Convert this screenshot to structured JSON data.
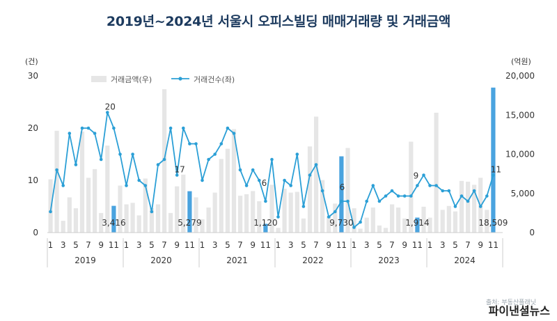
{
  "chart_data": {
    "type": "bar",
    "title": "2019년~2024년 서울시 오피스빌딩 매매거래량 및 거래금액",
    "left_unit": "(건)",
    "right_unit": "(억원)",
    "left_ylim": [
      0,
      30
    ],
    "right_ylim": [
      0,
      20000
    ],
    "left_ticks": [
      "0",
      "10",
      "20",
      "30"
    ],
    "right_ticks": [
      "0",
      "5,000",
      "10,000",
      "15,000",
      "20,000"
    ],
    "years": [
      "2019",
      "2020",
      "2021",
      "2022",
      "2023",
      "2024"
    ],
    "month_labels": [
      "1",
      "",
      "3",
      "",
      "5",
      "",
      "7",
      "",
      "9",
      "",
      "11",
      ""
    ],
    "legend": {
      "bar": "거래금액(우)",
      "line": "거래건수(좌)"
    },
    "colors": {
      "bar": "#e6e6e6",
      "bar_highlight": "#4aa3df",
      "line": "#2b9fd6",
      "axis": "#cccccc",
      "title": "#1c3a5e"
    },
    "series": [
      {
        "name": "거래금액(우)",
        "values": [
          6800,
          13000,
          1500,
          4500,
          3100,
          12900,
          7000,
          8100,
          2500,
          11100,
          3416,
          6000,
          3600,
          3800,
          2200,
          6900,
          3100,
          3600,
          18300,
          2500,
          5900,
          7400,
          5279,
          4500,
          1700,
          3200,
          5100,
          9400,
          10700,
          13200,
          4700,
          4900,
          5300,
          4000,
          1120,
          6100,
          600,
          5600,
          5100,
          5200,
          1800,
          11000,
          14800,
          6700,
          2100,
          3700,
          9730,
          10800,
          3100,
          500,
          1900,
          3200,
          900,
          600,
          3600,
          3200,
          1800,
          11600,
          1914,
          3300,
          1900,
          15300,
          2900,
          3400,
          2700,
          6600,
          6500,
          6100,
          7000,
          2900,
          18509,
          0
        ]
      },
      {
        "name": "거래건수(좌)",
        "values": [
          4,
          12,
          9,
          19,
          13,
          20,
          20,
          19,
          14,
          23,
          20,
          15,
          9,
          15,
          10,
          9,
          4,
          13,
          14,
          20,
          11,
          20,
          17,
          17,
          10,
          14,
          15,
          17,
          20,
          19,
          12,
          9,
          12,
          10,
          6,
          14,
          3,
          10,
          9,
          15,
          5,
          11,
          13,
          8,
          3,
          4,
          6,
          6,
          1,
          2,
          6,
          9,
          6,
          7,
          8,
          7,
          7,
          7,
          9,
          11,
          9,
          9,
          8,
          8,
          5,
          7,
          6,
          8,
          5,
          7,
          11,
          0
        ]
      }
    ],
    "annotations": [
      {
        "text": "3,416",
        "month_index": 10
      },
      {
        "text": "5,279",
        "month_index": 22
      },
      {
        "text": "1,120",
        "month_index": 34
      },
      {
        "text": "9,730",
        "month_index": 46
      },
      {
        "text": "1,914",
        "month_index": 58
      },
      {
        "text": "18,509",
        "month_index": 70
      },
      {
        "text": "20",
        "month_index": 9
      },
      {
        "text": "17",
        "month_index": 20
      },
      {
        "text": "6",
        "month_index": 34
      },
      {
        "text": "6",
        "month_index": 46
      },
      {
        "text": "9",
        "month_index": 58
      },
      {
        "text": "11",
        "month_index": 70
      }
    ],
    "highlight_months": [
      10,
      22,
      34,
      46,
      58,
      70
    ],
    "source": "출처: 부동산플래닛",
    "brand": "파이낸셜뉴스",
    "grid": false,
    "legend_position": "top-left"
  }
}
